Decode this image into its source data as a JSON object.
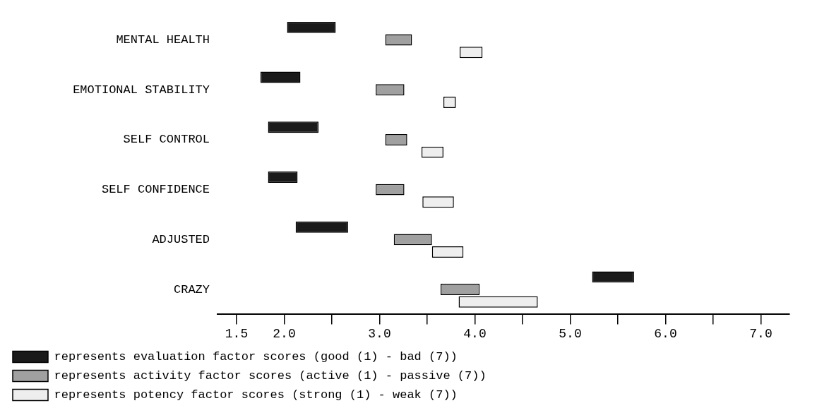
{
  "chart_data": {
    "type": "bar",
    "orientation": "horizontal",
    "categories": [
      "MENTAL HEALTH",
      "EMOTIONAL STABILITY",
      "SELF CONTROL",
      "SELF CONFIDENCE",
      "ADJUSTED",
      "CRAZY"
    ],
    "series": [
      {
        "name": "represents evaluation factor scores (good (1) - bad (7))",
        "color": "#1a1a1a",
        "base": [
          2.03,
          1.75,
          1.83,
          1.83,
          2.12,
          5.23
        ],
        "values": [
          0.51,
          0.42,
          0.53,
          0.31,
          0.55,
          0.44
        ]
      },
      {
        "name": "represents activity factor scores (active (1) - passive (7))",
        "color": "#a0a0a0",
        "base": [
          3.06,
          2.96,
          3.06,
          2.96,
          3.15,
          3.64
        ],
        "values": [
          0.28,
          0.3,
          0.23,
          0.3,
          0.4,
          0.41
        ]
      },
      {
        "name": "represents potency factor scores (strong (1) - weak (7))",
        "color": "#eeeeee",
        "base": [
          3.84,
          3.67,
          3.44,
          3.45,
          3.55,
          3.83
        ],
        "values": [
          0.24,
          0.13,
          0.23,
          0.33,
          0.33,
          0.83
        ]
      }
    ],
    "xlim": [
      1.3,
      7.3
    ],
    "xticks": [
      {
        "value": 1.5,
        "label": "1.5"
      },
      {
        "value": 2,
        "label": "2.0"
      },
      {
        "value": 2.5,
        "label": null
      },
      {
        "value": 3,
        "label": "3.0"
      },
      {
        "value": 3.5,
        "label": null
      },
      {
        "value": 4,
        "label": "4.0"
      },
      {
        "value": 4.5,
        "label": null
      },
      {
        "value": 5,
        "label": "5.0"
      },
      {
        "value": 5.5,
        "label": null
      },
      {
        "value": 6,
        "label": "6.0"
      },
      {
        "value": 6.5,
        "label": null
      },
      {
        "value": 7,
        "label": "7.0"
      }
    ],
    "legend": "bottom left"
  }
}
